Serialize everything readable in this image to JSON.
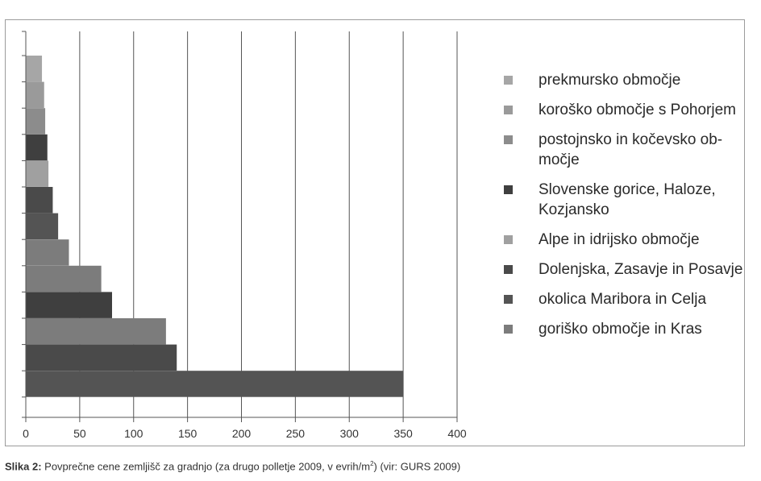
{
  "chart_data": {
    "type": "bar",
    "orientation": "horizontal",
    "stacked": true,
    "xlim": [
      0,
      400
    ],
    "xticks": [
      "0",
      "50",
      "100",
      "150",
      "200",
      "250",
      "300",
      "350",
      "400"
    ],
    "grid": "vertical",
    "legend_position": "right",
    "bars": [
      {
        "series": 0,
        "value": 15
      },
      {
        "series": 1,
        "value": 17
      },
      {
        "series": 2,
        "value": 18
      },
      {
        "series": 3,
        "value": 20
      },
      {
        "series": 4,
        "value": 21
      },
      {
        "series": 5,
        "value": 25
      },
      {
        "series": 6,
        "value": 30
      },
      {
        "series": 7,
        "value": 40
      },
      {
        "series": 7,
        "value": 70
      },
      {
        "series": 3,
        "value": 80
      },
      {
        "series": 7,
        "value": 130
      },
      {
        "series": 5,
        "value": 140
      },
      {
        "series": 6,
        "value": 350
      }
    ],
    "series": [
      {
        "name": "prekmursko območje",
        "color": "#a6a6a6"
      },
      {
        "name": "koroško območje s Pohorjem",
        "color": "#9a9a9a"
      },
      {
        "name": "postojnsko in kočevsko ob-\nmočje",
        "color": "#8c8c8c"
      },
      {
        "name": "Slovenske gorice, Haloze,\nKozjansko",
        "color": "#3f3f3f"
      },
      {
        "name": "Alpe in idrijsko območje",
        "color": "#a0a0a0"
      },
      {
        "name": "Dolenjska, Zasavje in Posavje",
        "color": "#4a4a4a"
      },
      {
        "name": "okolica Maribora in Celja",
        "color": "#545454"
      },
      {
        "name": "goriško območje in Kras",
        "color": "#7c7c7c"
      }
    ]
  },
  "caption": {
    "label": "Slika 2:",
    "text_before_sup": " Povprečne cene zemljišč za gradnjo (za drugo polletje 2009, v evrih/m",
    "sup": "2",
    "text_after_sup": ") (vir: GURS 2009)"
  }
}
